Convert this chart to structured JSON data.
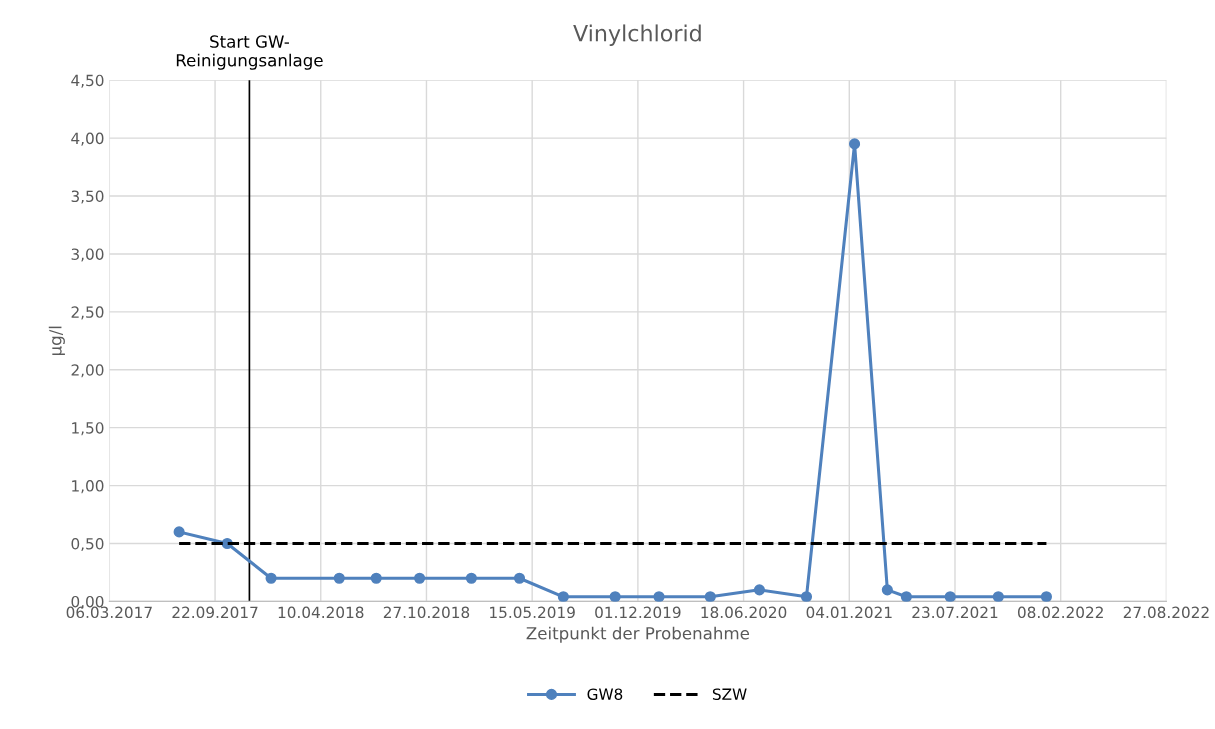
{
  "chart_data": {
    "type": "line",
    "title": "Vinylchlorid",
    "xlabel": "Zeitpunkt der Probenahme",
    "ylabel": "µg/l",
    "series": [
      {
        "name": "GW8",
        "color": "#4f81bd",
        "marker": "circle",
        "line_style": "solid",
        "x": [
          "2017-07-16",
          "2017-10-15",
          "2018-01-06",
          "2018-05-15",
          "2018-07-24",
          "2018-10-14",
          "2019-01-20",
          "2019-04-21",
          "2019-07-13",
          "2019-10-19",
          "2020-01-10",
          "2020-04-16",
          "2020-07-18",
          "2020-10-15",
          "2021-01-14",
          "2021-03-17",
          "2021-04-22",
          "2021-07-14",
          "2021-10-13",
          "2022-01-12"
        ],
        "values": [
          0.6,
          0.5,
          0.2,
          0.2,
          0.2,
          0.2,
          0.2,
          0.2,
          0.04,
          0.04,
          0.04,
          0.04,
          0.1,
          0.04,
          3.95,
          0.1,
          0.04,
          0.04,
          0.04,
          0.04
        ]
      },
      {
        "name": "SZW",
        "color": "#000000",
        "marker": "none",
        "line_style": "dashed",
        "x": [
          "2017-07-16",
          "2022-01-12"
        ],
        "values": [
          0.5,
          0.5
        ]
      }
    ],
    "ref_lines": [
      {
        "axis": "x",
        "value": "2017-11-26",
        "label": "Start GW-\nReinigungsanlage",
        "color": "#000000",
        "line_style": "solid"
      }
    ],
    "xlim": [
      "2017-03-06",
      "2022-08-27"
    ],
    "xticks": [
      {
        "value": "2017-03-06",
        "label": "06.03.2017"
      },
      {
        "value": "2017-09-22",
        "label": "22.09.2017"
      },
      {
        "value": "2018-04-10",
        "label": "10.04.2018"
      },
      {
        "value": "2018-10-27",
        "label": "27.10.2018"
      },
      {
        "value": "2019-05-15",
        "label": "15.05.2019"
      },
      {
        "value": "2019-12-01",
        "label": "01.12.2019"
      },
      {
        "value": "2020-06-18",
        "label": "18.06.2020"
      },
      {
        "value": "2021-01-04",
        "label": "04.01.2021"
      },
      {
        "value": "2021-07-23",
        "label": "23.07.2021"
      },
      {
        "value": "2022-02-08",
        "label": "08.02.2022"
      },
      {
        "value": "2022-08-27",
        "label": "27.08.2022"
      }
    ],
    "ylim": [
      0,
      4.5
    ],
    "yticks": [
      {
        "value": 0,
        "label": "0,00"
      },
      {
        "value": 0.5,
        "label": "0,50"
      },
      {
        "value": 1,
        "label": "1,00"
      },
      {
        "value": 1.5,
        "label": "1,50"
      },
      {
        "value": 2,
        "label": "2,00"
      },
      {
        "value": 2.5,
        "label": "2,50"
      },
      {
        "value": 3,
        "label": "3,00"
      },
      {
        "value": 3.5,
        "label": "3,50"
      },
      {
        "value": 4,
        "label": "4,00"
      },
      {
        "value": 4.5,
        "label": "4,50"
      }
    ],
    "grid": true,
    "legend": "bottom"
  }
}
